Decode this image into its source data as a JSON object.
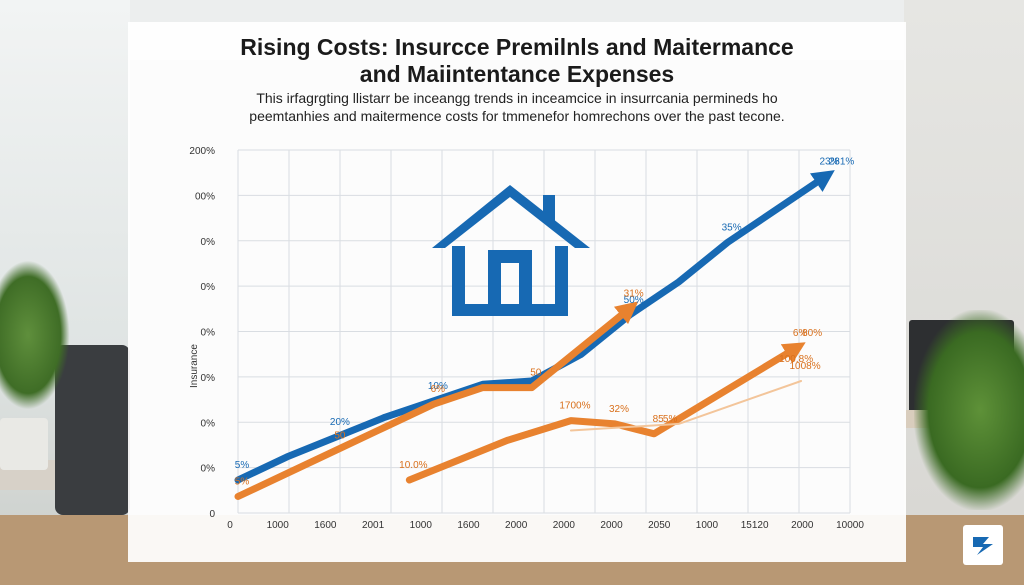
{
  "chart_data": {
    "type": "line",
    "title_line1": "Rising Costs: Insurcce Premilnls and Maitermance",
    "title_line2": "and Maiintentance Expenses",
    "subtitle_line1": "This irfagrgting llistarr be inceangg trends in inceamcice in insurrcania permineds ho",
    "subtitle_line2": "peemtanhies and maitermence costs for tmmenefor homrechons over the past tecone.",
    "y_tick_labels": [
      "200%",
      "00%",
      "0%",
      "0%",
      "0%",
      "0%",
      "0%",
      "0%",
      "0"
    ],
    "ylabel": "Insurance",
    "x_tick_labels": [
      "0",
      "1000",
      "1600",
      "2001",
      "1000",
      "1600",
      "2000",
      "2000",
      "2000",
      "2050",
      "1000",
      "15120",
      "2000",
      "10000"
    ],
    "grid": true,
    "series": [
      {
        "color": "#1769b3",
        "x": [
          0,
          1,
          2,
          3,
          4,
          5,
          6,
          7,
          8,
          9,
          10,
          11,
          12
        ],
        "y": [
          10,
          17,
          23,
          29,
          34,
          39,
          40,
          48,
          60,
          70,
          82,
          92,
          102
        ],
        "labels": [
          {
            "text": "5%",
            "i": 0
          },
          {
            "text": "20%",
            "i": 2
          },
          {
            "text": "10%",
            "i": 4
          },
          {
            "text": "50%",
            "i": 8
          },
          {
            "text": "35%",
            "i": 10
          },
          {
            "text": "23%",
            "i": 12
          },
          {
            "text": "281%",
            "i": 12
          }
        ]
      },
      {
        "color": "#e8822f",
        "x": [
          0,
          1,
          2,
          3,
          4,
          5,
          6,
          7,
          8
        ],
        "y": [
          5,
          12,
          19,
          26,
          33,
          38,
          38,
          50,
          62
        ],
        "labels": [
          {
            "text": "5%",
            "i": 0
          },
          {
            "text": "50",
            "i": 2
          },
          {
            "text": "6%",
            "i": 4
          },
          {
            "text": "50",
            "i": 6
          },
          {
            "text": "31%",
            "i": 8
          }
        ]
      },
      {
        "color": "#e8822f",
        "x": [
          3.5,
          5.5,
          6.8,
          7.7,
          8.5,
          11.4
        ],
        "y": [
          10,
          22,
          28,
          27,
          24,
          50
        ],
        "labels": [
          {
            "text": "10.0%",
            "i": 0
          },
          {
            "text": "1700%",
            "i": 2
          },
          {
            "text": "32%",
            "i": 3
          },
          {
            "text": "85",
            "i": 4
          },
          {
            "text": "5%",
            "i": 4
          },
          {
            "text": "6%",
            "i": 5
          },
          {
            "text": "80%",
            "i": 5
          },
          {
            "text": "100.8%",
            "i": 5
          }
        ]
      },
      {
        "color": "#f3c59a",
        "x": [
          6.8,
          9.0,
          11.5
        ],
        "y": [
          25,
          27,
          40
        ],
        "labels": [
          {
            "text": "1008%",
            "i": 2
          }
        ]
      }
    ]
  },
  "colors": {
    "blue": "#1769b3",
    "orange": "#e8822f",
    "light_orange": "#f3c59a"
  },
  "icons": [
    "house-icon",
    "brand-logo-icon"
  ]
}
